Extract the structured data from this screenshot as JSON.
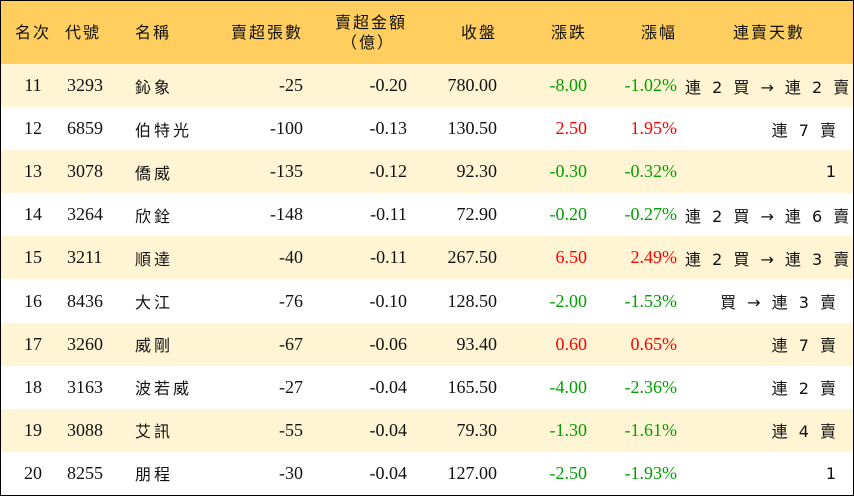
{
  "colors": {
    "header_bg": "#ffce5f",
    "stripe_bg": "#fff4d3",
    "up": "#ff0000",
    "down": "#00a000"
  },
  "headers": {
    "rank": "名次",
    "code": "代號",
    "name": "名稱",
    "net_sell_lots": "賣超張數",
    "net_sell_amount_line1": "賣超金額",
    "net_sell_amount_line2": "（億）",
    "close": "收盤",
    "change": "漲跌",
    "change_pct": "漲幅",
    "consecutive": "連賣天數"
  },
  "rows": [
    {
      "rank": "11",
      "code": "3293",
      "name": "鈊象",
      "lots": "-25",
      "amount": "-0.20",
      "close": "780.00",
      "change": "-8.00",
      "pct": "-1.02%",
      "dir": "down",
      "days": "連 2 買 → 連 2 賣"
    },
    {
      "rank": "12",
      "code": "6859",
      "name": "伯特光",
      "lots": "-100",
      "amount": "-0.13",
      "close": "130.50",
      "change": "2.50",
      "pct": "1.95%",
      "dir": "up",
      "days": "連 7 賣"
    },
    {
      "rank": "13",
      "code": "3078",
      "name": "僑威",
      "lots": "-135",
      "amount": "-0.12",
      "close": "92.30",
      "change": "-0.30",
      "pct": "-0.32%",
      "dir": "down",
      "days": "1"
    },
    {
      "rank": "14",
      "code": "3264",
      "name": "欣銓",
      "lots": "-148",
      "amount": "-0.11",
      "close": "72.90",
      "change": "-0.20",
      "pct": "-0.27%",
      "dir": "down",
      "days": "連 2 買 → 連 6 賣"
    },
    {
      "rank": "15",
      "code": "3211",
      "name": "順達",
      "lots": "-40",
      "amount": "-0.11",
      "close": "267.50",
      "change": "6.50",
      "pct": "2.49%",
      "dir": "up",
      "days": "連 2 買 → 連 3 賣"
    },
    {
      "rank": "16",
      "code": "8436",
      "name": "大江",
      "lots": "-76",
      "amount": "-0.10",
      "close": "128.50",
      "change": "-2.00",
      "pct": "-1.53%",
      "dir": "down",
      "days": "買 → 連 3 賣"
    },
    {
      "rank": "17",
      "code": "3260",
      "name": "威剛",
      "lots": "-67",
      "amount": "-0.06",
      "close": "93.40",
      "change": "0.60",
      "pct": "0.65%",
      "dir": "up",
      "days": "連 7 賣"
    },
    {
      "rank": "18",
      "code": "3163",
      "name": "波若威",
      "lots": "-27",
      "amount": "-0.04",
      "close": "165.50",
      "change": "-4.00",
      "pct": "-2.36%",
      "dir": "down",
      "days": "連 2 賣"
    },
    {
      "rank": "19",
      "code": "3088",
      "name": "艾訊",
      "lots": "-55",
      "amount": "-0.04",
      "close": "79.30",
      "change": "-1.30",
      "pct": "-1.61%",
      "dir": "down",
      "days": "連 4 賣"
    },
    {
      "rank": "20",
      "code": "8255",
      "name": "朋程",
      "lots": "-30",
      "amount": "-0.04",
      "close": "127.00",
      "change": "-2.50",
      "pct": "-1.93%",
      "dir": "down",
      "days": "1"
    }
  ]
}
